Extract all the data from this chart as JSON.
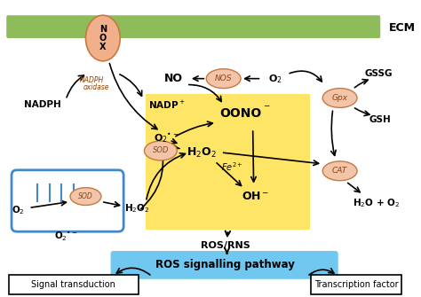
{
  "background_color": "#ffffff",
  "ecm_bar_color": "#8fbc5a",
  "ecm_text": "ECM",
  "yellow_box_color": "#ffe566",
  "blue_box_color": "#70c8f0",
  "ros_signal_text": "ROS signalling pathway",
  "signal_transduction_text": "Signal transduction",
  "transcription_factor_text": "Transcription factor",
  "nox_ellipse_color": "#f2b08a",
  "enzyme_ellipse_color": "#f2c4a8",
  "mitochondria_color": "#4488cc"
}
